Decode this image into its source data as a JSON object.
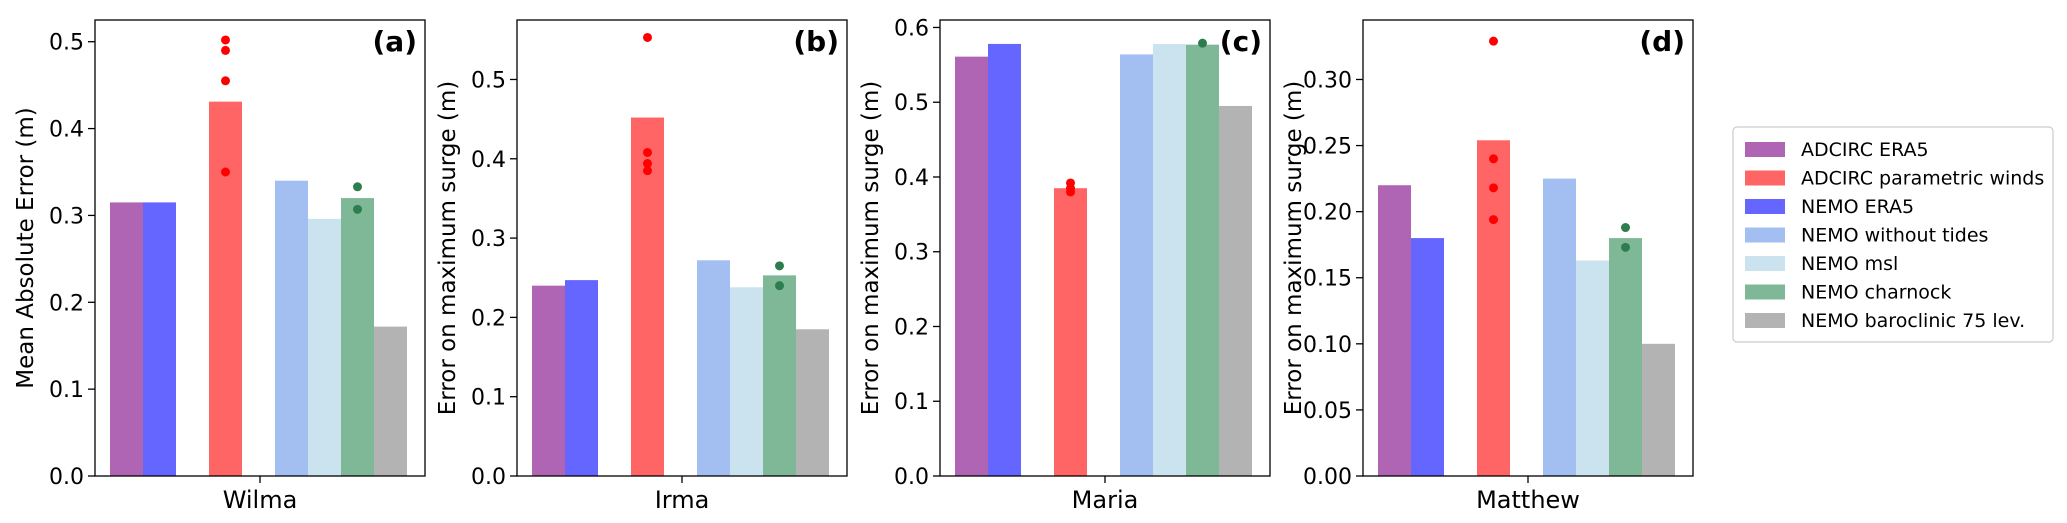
{
  "chart_data": [
    {
      "type": "bar",
      "tag": "(a)",
      "category": "Wilma",
      "ylabel": "Mean Absolute Error (m)",
      "ylim": [
        0,
        0.525
      ],
      "yticks": [
        0.0,
        0.1,
        0.2,
        0.3,
        0.4,
        0.5
      ],
      "tick_format": 1,
      "series": [
        {
          "name": "ADCIRC ERA5",
          "value": 0.315
        },
        {
          "name": "NEMO ERA5",
          "value": 0.315
        },
        {
          "name": "ADCIRC parametric winds",
          "value": 0.431,
          "points": [
            0.502,
            0.49,
            0.455,
            0.35
          ]
        },
        {
          "name": "NEMO without tides",
          "value": 0.34
        },
        {
          "name": "NEMO msl",
          "value": 0.296
        },
        {
          "name": "NEMO charnock",
          "value": 0.32,
          "points": [
            0.333,
            0.307
          ]
        },
        {
          "name": "NEMO baroclinic 75 lev.",
          "value": 0.172
        }
      ]
    },
    {
      "type": "bar",
      "tag": "(b)",
      "category": "Irma",
      "ylabel": "Error on maximum surge (m)",
      "ylim": [
        0,
        0.575
      ],
      "yticks": [
        0.0,
        0.1,
        0.2,
        0.3,
        0.4,
        0.5
      ],
      "tick_format": 1,
      "series": [
        {
          "name": "ADCIRC ERA5",
          "value": 0.24
        },
        {
          "name": "NEMO ERA5",
          "value": 0.247
        },
        {
          "name": "ADCIRC parametric winds",
          "value": 0.452,
          "points": [
            0.553,
            0.408,
            0.394,
            0.385
          ]
        },
        {
          "name": "NEMO without tides",
          "value": 0.272
        },
        {
          "name": "NEMO msl",
          "value": 0.238
        },
        {
          "name": "NEMO charnock",
          "value": 0.253,
          "points": [
            0.265,
            0.24
          ]
        },
        {
          "name": "NEMO baroclinic 75 lev.",
          "value": 0.185
        }
      ]
    },
    {
      "type": "bar",
      "tag": "(c)",
      "category": "Maria",
      "ylabel": "Error on maximum surge (m)",
      "ylim": [
        0,
        0.61
      ],
      "yticks": [
        0.0,
        0.1,
        0.2,
        0.3,
        0.4,
        0.5,
        0.6
      ],
      "tick_format": 1,
      "series": [
        {
          "name": "ADCIRC ERA5",
          "value": 0.561
        },
        {
          "name": "NEMO ERA5",
          "value": 0.578
        },
        {
          "name": "ADCIRC parametric winds",
          "value": 0.385,
          "points": [
            0.392,
            0.385,
            0.38
          ]
        },
        {
          "name": "NEMO without tides",
          "value": 0.564
        },
        {
          "name": "NEMO msl",
          "value": 0.578
        },
        {
          "name": "NEMO charnock",
          "value": 0.577,
          "points": [
            0.579
          ]
        },
        {
          "name": "NEMO baroclinic 75 lev.",
          "value": 0.495
        }
      ]
    },
    {
      "type": "bar",
      "tag": "(d)",
      "category": "Matthew",
      "ylabel": "Error on maximum surge (m)",
      "ylim": [
        0,
        0.345
      ],
      "yticks": [
        0.0,
        0.05,
        0.1,
        0.15,
        0.2,
        0.25,
        0.3
      ],
      "tick_format": 2,
      "series": [
        {
          "name": "ADCIRC ERA5",
          "value": 0.22
        },
        {
          "name": "NEMO ERA5",
          "value": 0.18
        },
        {
          "name": "ADCIRC parametric winds",
          "value": 0.254,
          "points": [
            0.329,
            0.24,
            0.218,
            0.194
          ]
        },
        {
          "name": "NEMO without tides",
          "value": 0.225
        },
        {
          "name": "NEMO msl",
          "value": 0.163
        },
        {
          "name": "NEMO charnock",
          "value": 0.18,
          "points": [
            0.188,
            0.173
          ]
        },
        {
          "name": "NEMO baroclinic 75 lev.",
          "value": 0.1
        }
      ]
    }
  ],
  "legend": {
    "placement": "right",
    "entries": [
      {
        "label": "ADCIRC ERA5",
        "color": "#b065b4"
      },
      {
        "label": "ADCIRC parametric winds",
        "color": "#ff6565"
      },
      {
        "label": "NEMO ERA5",
        "color": "#6565ff"
      },
      {
        "label": "NEMO without tides",
        "color": "#a3bff2"
      },
      {
        "label": "NEMO msl",
        "color": "#cbe3ee"
      },
      {
        "label": "NEMO charnock",
        "color": "#7fb896"
      },
      {
        "label": "NEMO baroclinic 75 lev.",
        "color": "#b3b3b3"
      }
    ]
  },
  "point_colors": {
    "ADCIRC parametric winds": "#ff0000",
    "NEMO charnock": "#2e7d4f"
  }
}
